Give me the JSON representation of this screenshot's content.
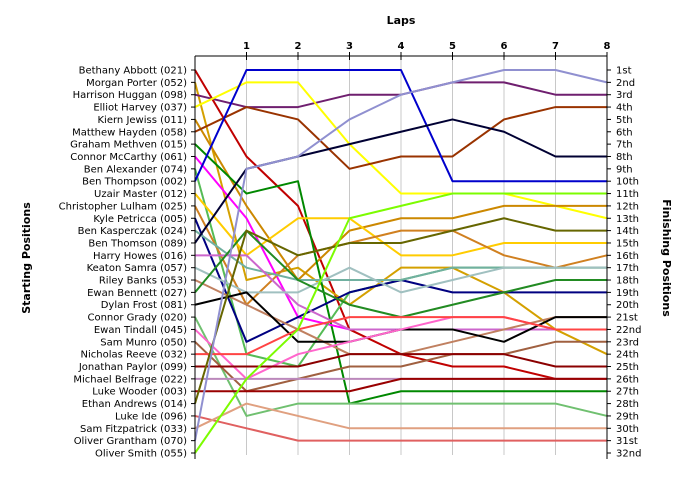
{
  "chart_data": {
    "type": "line",
    "title": "",
    "xlabel": "Laps",
    "ylabel_left": "Starting Positions",
    "ylabel_right": "Finishing Positions",
    "xlim": [
      0,
      8
    ],
    "ylim": [
      1,
      32
    ],
    "x": [
      0,
      1,
      2,
      3,
      4,
      5,
      6,
      7,
      8
    ],
    "lap_labels": [
      "1",
      "2",
      "3",
      "4",
      "5",
      "6",
      "7",
      "8"
    ],
    "position_labels": [
      "1st",
      "2nd",
      "3rd",
      "4th",
      "5th",
      "6th",
      "7th",
      "8th",
      "9th",
      "10th",
      "11th",
      "12th",
      "13th",
      "14th",
      "15th",
      "16th",
      "17th",
      "18th",
      "19th",
      "20th",
      "21st",
      "22nd",
      "23rd",
      "24th",
      "25th",
      "26th",
      "27th",
      "28th",
      "29th",
      "30th",
      "31st",
      "32nd"
    ],
    "drivers": [
      "Bethany Abbott (021)",
      "Morgan Porter (052)",
      "Harrison Huggan (098)",
      "Elliot Harvey (037)",
      "Kiern Jewiss (011)",
      "Matthew Hayden (058)",
      "Graham Methven (015)",
      "Connor McCarthy (061)",
      "Ben Alexander (074)",
      "Ben Thompson (002)",
      "Uzair Master (012)",
      "Christopher Lulham (025)",
      "Kyle Petricca (005)",
      "Ben Kasperczak (024)",
      "Ben Thomson (089)",
      "Harry Howes (016)",
      "Keaton Samra (057)",
      "Riley Banks (053)",
      "Ewan Bennett (027)",
      "Dylan Frost (081)",
      "Connor Grady (020)",
      "Ewan Tindall (045)",
      "Sam Munro (050)",
      "Nicholas Reeve (032)",
      "Jonathan Paylor (099)",
      "Michael Belfrage (022)",
      "Luke Wooder (003)",
      "Ethan Andrews (014)",
      "Luke Ide (096)",
      "Sam Fitzpatrick (033)",
      "Oliver Grantham (070)",
      "Oliver Smith (055)"
    ],
    "series": [
      {
        "color": "#c00000",
        "values": [
          1,
          8,
          12,
          22,
          24,
          25,
          25,
          26,
          26
        ]
      },
      {
        "color": "#d4a000",
        "values": [
          2,
          18,
          17,
          20,
          17,
          17,
          19,
          22,
          24
        ]
      },
      {
        "color": "#6f1f6f",
        "values": [
          3,
          4,
          4,
          3,
          3,
          2,
          2,
          3,
          3
        ]
      },
      {
        "color": "#ffff00",
        "values": [
          4,
          2,
          2,
          7,
          11,
          11,
          11,
          12,
          13
        ]
      },
      {
        "color": "#cc8800",
        "values": [
          5,
          12,
          18,
          14,
          13,
          13,
          12,
          12,
          12
        ]
      },
      {
        "color": "#993300",
        "values": [
          6,
          4,
          5,
          9,
          8,
          8,
          5,
          4,
          4
        ]
      },
      {
        "color": "#008800",
        "values": [
          7,
          11,
          10,
          28,
          27,
          27,
          27,
          27,
          27
        ]
      },
      {
        "color": "#ff00ff",
        "values": [
          8,
          13,
          21,
          22,
          22,
          22,
          22,
          22,
          22
        ]
      },
      {
        "color": "#55bb55",
        "values": [
          9,
          24,
          25,
          19,
          18,
          17,
          17,
          17,
          17
        ]
      },
      {
        "color": "#0000cc",
        "values": [
          10,
          1,
          1,
          1,
          1,
          10,
          10,
          10,
          10
        ]
      },
      {
        "color": "#ffcc00",
        "values": [
          11,
          16,
          13,
          13,
          16,
          16,
          15,
          15,
          15
        ]
      },
      {
        "color": "#d08020",
        "values": [
          12,
          20,
          16,
          15,
          14,
          14,
          16,
          17,
          16
        ]
      },
      {
        "color": "#000080",
        "values": [
          13,
          23,
          21,
          19,
          18,
          19,
          19,
          19,
          19
        ]
      },
      {
        "color": "#70b0a0",
        "values": [
          14,
          17,
          18,
          18,
          18,
          17,
          17,
          17,
          17
        ]
      },
      {
        "color": "#000033",
        "values": [
          15,
          9,
          8,
          7,
          6,
          5,
          6,
          8,
          8
        ]
      },
      {
        "color": "#cc66cc",
        "values": [
          16,
          16,
          20,
          22,
          22,
          22,
          22,
          22,
          22
        ]
      },
      {
        "color": "#a0c0c0",
        "values": [
          17,
          19,
          19,
          17,
          19,
          18,
          17,
          17,
          17
        ]
      },
      {
        "color": "#c08060",
        "values": [
          18,
          20,
          22,
          24,
          24,
          23,
          22,
          21,
          21
        ]
      },
      {
        "color": "#228b22",
        "values": [
          19,
          14,
          18,
          20,
          21,
          20,
          19,
          18,
          18
        ]
      },
      {
        "color": "#000000",
        "values": [
          20,
          19,
          23,
          23,
          22,
          22,
          23,
          21,
          21
        ]
      },
      {
        "color": "#70c070",
        "values": [
          21,
          29,
          28,
          28,
          28,
          28,
          28,
          28,
          29
        ]
      },
      {
        "color": "#ff66cc",
        "values": [
          22,
          26,
          24,
          23,
          22,
          21,
          21,
          22,
          22
        ]
      },
      {
        "color": "#a06040",
        "values": [
          23,
          27,
          26,
          25,
          25,
          24,
          24,
          23,
          23
        ]
      },
      {
        "color": "#ff4444",
        "values": [
          24,
          24,
          22,
          21,
          21,
          21,
          21,
          22,
          22
        ]
      },
      {
        "color": "#8b0000",
        "values": [
          25,
          25,
          25,
          24,
          24,
          24,
          24,
          25,
          25
        ]
      },
      {
        "color": "#bb88bb",
        "values": [
          26,
          26,
          26,
          26,
          26,
          26,
          26,
          26,
          26
        ]
      },
      {
        "color": "#990000",
        "values": [
          27,
          27,
          27,
          27,
          26,
          26,
          26,
          26,
          26
        ]
      },
      {
        "color": "#666600",
        "values": [
          28,
          14,
          16,
          15,
          15,
          14,
          13,
          14,
          14
        ]
      },
      {
        "color": "#e06060",
        "values": [
          29,
          30,
          31,
          31,
          31,
          31,
          31,
          31,
          31
        ]
      },
      {
        "color": "#e0a080",
        "values": [
          30,
          28,
          29,
          30,
          30,
          30,
          30,
          30,
          30
        ]
      },
      {
        "color": "#9090d0",
        "values": [
          31,
          9,
          8,
          5,
          3,
          2,
          1,
          1,
          2
        ]
      },
      {
        "color": "#7cfc00",
        "values": [
          32,
          26,
          22,
          13,
          12,
          11,
          11,
          11,
          11
        ]
      }
    ]
  }
}
